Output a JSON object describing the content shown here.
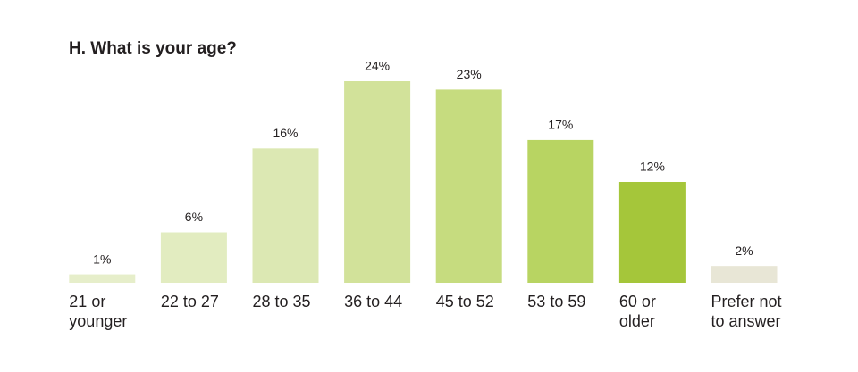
{
  "chart_data": {
    "type": "bar",
    "title": "H. What is your age?",
    "categories": [
      [
        "21 or",
        "younger"
      ],
      [
        "22 to 27"
      ],
      [
        "28 to 35"
      ],
      [
        "36 to 44"
      ],
      [
        "45 to 52"
      ],
      [
        "53 to 59"
      ],
      [
        "60 or",
        "older"
      ],
      [
        "Prefer not",
        "to answer"
      ]
    ],
    "values": [
      1,
      6,
      16,
      24,
      23,
      17,
      12,
      2
    ],
    "value_labels": [
      "1%",
      "6%",
      "16%",
      "24%",
      "23%",
      "17%",
      "12%",
      "2%"
    ],
    "colors": [
      "#e6eeca",
      "#e2ecc0",
      "#dce8b3",
      "#d2e29a",
      "#c6dc7f",
      "#b8d462",
      "#a5c63a",
      "#e8e6d6"
    ],
    "ylim": [
      0,
      24
    ]
  }
}
